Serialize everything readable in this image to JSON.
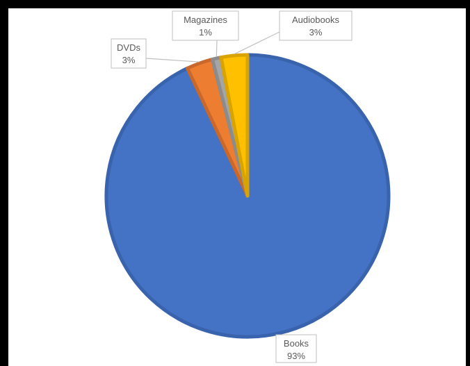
{
  "chart_data": {
    "type": "pie",
    "slices": [
      {
        "name": "Books",
        "percent_label": "93%",
        "value": 93,
        "color": "#4472C4",
        "border": "#3A63AD"
      },
      {
        "name": "DVDs",
        "percent_label": "3%",
        "value": 3,
        "color": "#ED7D31",
        "border": "#C9682A"
      },
      {
        "name": "Magazines",
        "percent_label": "1%",
        "value": 1,
        "color": "#A5A5A5",
        "border": "#8C8C8C"
      },
      {
        "name": "Audiobooks",
        "percent_label": "3%",
        "value": 3,
        "color": "#FFC000",
        "border": "#D9A300"
      }
    ],
    "start_angle_degrees": 0,
    "direction": "counterclockwise-from-top",
    "labels": "outside-with-leader-lines",
    "legend": "none"
  }
}
